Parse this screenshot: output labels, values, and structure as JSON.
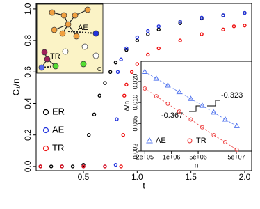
{
  "chart_data": [
    {
      "type": "scatter",
      "x_label": "t",
      "y_label": "C₁/n",
      "xlim": [
        0.06,
        2.065
      ],
      "ylim": [
        -0.027,
        1.035
      ],
      "xticks": [
        0.5,
        {
          "value": 1,
          "label": "1.0"
        },
        1.5,
        {
          "value": 2,
          "label": "2.0"
        }
      ],
      "yticks": [
        {
          "value": 0,
          "label": "0.0"
        },
        0.2,
        0.4,
        0.6,
        0.8,
        {
          "value": 1,
          "label": "1.0"
        }
      ],
      "legend": "bottom-left",
      "series": [
        {
          "name": "ER",
          "color": "#000000",
          "x": [
            0.1,
            0.2,
            0.3,
            0.4,
            0.5,
            0.55,
            0.6,
            0.65,
            0.7,
            0.75,
            0.8,
            0.9,
            1.0,
            1.1,
            1.2,
            1.4,
            1.6,
            1.8,
            2.0
          ],
          "values": [
            0,
            0,
            0,
            0,
            0.01,
            0.2,
            0.33,
            0.45,
            0.53,
            0.6,
            0.66,
            0.74,
            0.8,
            0.84,
            0.87,
            0.91,
            0.94,
            0.96,
            0.975
          ]
        },
        {
          "name": "AE",
          "color": "#2233dd",
          "x": [
            0.1,
            0.3,
            0.5,
            0.7,
            0.8,
            0.81,
            0.82,
            0.85,
            0.9,
            1.0,
            1.1,
            1.2,
            1.4,
            1.6,
            1.8,
            2.0
          ],
          "values": [
            0,
            0,
            0,
            0,
            0.01,
            0.3,
            0.6,
            0.68,
            0.75,
            0.82,
            0.86,
            0.89,
            0.92,
            0.945,
            0.96,
            0.975
          ]
        },
        {
          "name": "TR",
          "color": "#ee1111",
          "x": [
            0.1,
            0.3,
            0.5,
            0.7,
            0.85,
            0.87,
            0.88,
            0.9,
            0.95,
            1.0,
            1.1,
            1.2,
            1.4,
            1.6,
            1.8,
            1.9,
            2.0
          ],
          "values": [
            0,
            0,
            0,
            0,
            0,
            0.2,
            0.45,
            0.52,
            0.6,
            0.65,
            0.71,
            0.75,
            0.8,
            0.84,
            0.87,
            0.89,
            0.895
          ]
        }
      ]
    },
    {
      "type": "scatter",
      "x_label": "n",
      "y_label": "Δ/n",
      "xlog": true,
      "ylog": true,
      "xlim": [
        160000,
        126000000
      ],
      "ylim": [
        0.002,
        0.039
      ],
      "xticks": [
        {
          "value": 200000,
          "label": "2e+05"
        },
        {
          "value": 1000000,
          "label": "1e+06"
        },
        {
          "value": 5000000,
          "label": "5e+06"
        },
        {
          "value": 50000000,
          "label": "5e+07"
        }
      ],
      "yticks": [
        0.002,
        0.005,
        {
          "value": 0.01,
          "label": "0.010"
        },
        {
          "value": 0.02,
          "label": "0.020"
        }
      ],
      "legend": "bottom",
      "annotations": [
        "-0.323",
        "-0.367"
      ],
      "series": [
        {
          "name": "AE",
          "color": "#5577ee",
          "marker": "triangle",
          "x": [
            200000,
            400000,
            800000,
            1600000,
            3200000,
            6400000,
            12800000,
            25600000,
            51200000
          ],
          "values": [
            0.0276,
            0.0221,
            0.0176,
            0.0141,
            0.0113,
            0.009,
            0.0072,
            0.0057,
            0.0046
          ]
        },
        {
          "name": "TR",
          "color": "#ee4444",
          "marker": "circle",
          "x": [
            200000,
            400000,
            800000,
            1600000,
            3200000,
            6400000,
            12800000,
            25600000,
            51200000
          ],
          "values": [
            0.0159,
            0.0123,
            0.0096,
            0.0074,
            0.0057,
            0.0044,
            0.0034,
            0.0027,
            0.0021
          ]
        }
      ]
    }
  ],
  "diagram": {
    "labels": [
      "AE",
      "TR",
      "C"
    ]
  }
}
